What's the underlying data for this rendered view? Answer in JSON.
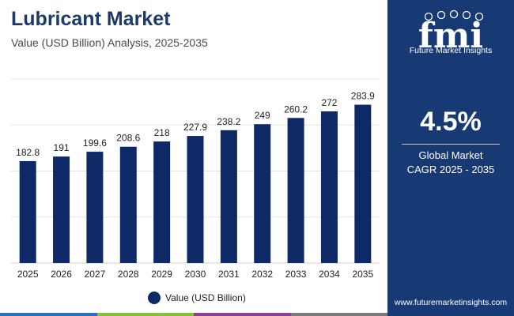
{
  "header": {
    "title": "Lubricant Market",
    "subtitle": "Value (USD Billion) Analysis, 2025-2035"
  },
  "chart_data": {
    "type": "bar",
    "categories": [
      "2025",
      "2026",
      "2027",
      "2028",
      "2029",
      "2030",
      "2031",
      "2032",
      "2033",
      "2034",
      "2035"
    ],
    "series": [
      {
        "name": "Value (USD Billion)",
        "values": [
          182.8,
          191,
          199.6,
          208.6,
          218,
          227.9,
          238.2,
          249,
          260.2,
          272,
          283.9
        ],
        "labels": [
          "182.8",
          "191",
          "199.6",
          "208.6",
          "218",
          "227.9",
          "238.2",
          "249",
          "260.2",
          "272",
          "283.9"
        ]
      }
    ],
    "ylim": [
      0,
      330
    ],
    "grid": true,
    "legend_position": "bottom-center"
  },
  "legend": {
    "label": "Value (USD Billion)"
  },
  "sidebar": {
    "logo_text": "fmi",
    "logo_tagline": "Future Market Insights",
    "cagr_value": "4.5%",
    "cagr_line1": "Global Market",
    "cagr_line2": "CAGR 2025 - 2035",
    "website": "www.futuremarketinsights.com"
  },
  "colors": {
    "bar": "#0e2a66",
    "title": "#1d3a6b",
    "sidebar_bg": "#173a75",
    "grid": "#e3e3e3",
    "bottom_stripes": [
      "#2f6fb5",
      "#86bf3e",
      "#8c3d8f",
      "#7a7a7a"
    ]
  }
}
